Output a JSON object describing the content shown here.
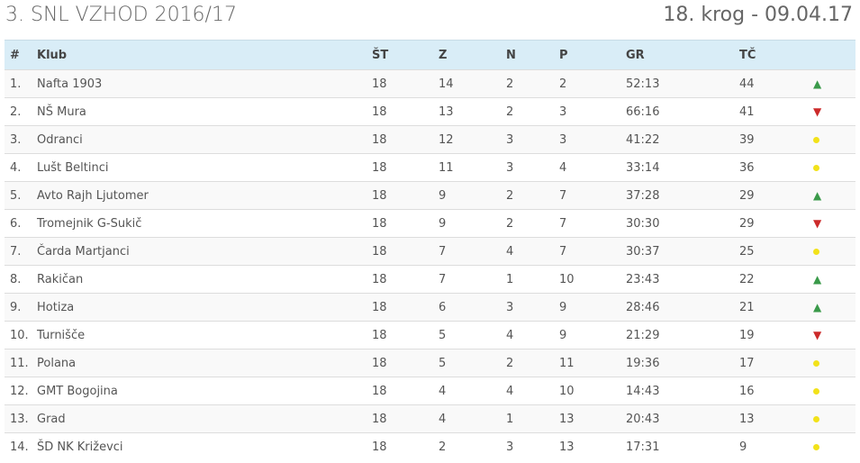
{
  "header": {
    "title": "3. SNL VZHOD 2016/17",
    "round": "18. krog - 09.04.17"
  },
  "columns": [
    "#",
    "Klub",
    "ŠT",
    "Z",
    "N",
    "P",
    "GR",
    "TČ"
  ],
  "rows": [
    {
      "pos": "1.",
      "club": "Nafta 1903",
      "st": "18",
      "z": "14",
      "n": "2",
      "p": "2",
      "gr": "52:13",
      "tc": "44",
      "trend": "up"
    },
    {
      "pos": "2.",
      "club": "NŠ Mura",
      "st": "18",
      "z": "13",
      "n": "2",
      "p": "3",
      "gr": "66:16",
      "tc": "41",
      "trend": "down"
    },
    {
      "pos": "3.",
      "club": "Odranci",
      "st": "18",
      "z": "12",
      "n": "3",
      "p": "3",
      "gr": "41:22",
      "tc": "39",
      "trend": "same"
    },
    {
      "pos": "4.",
      "club": "Lušt Beltinci",
      "st": "18",
      "z": "11",
      "n": "3",
      "p": "4",
      "gr": "33:14",
      "tc": "36",
      "trend": "same"
    },
    {
      "pos": "5.",
      "club": "Avto Rajh Ljutomer",
      "st": "18",
      "z": "9",
      "n": "2",
      "p": "7",
      "gr": "37:28",
      "tc": "29",
      "trend": "up"
    },
    {
      "pos": "6.",
      "club": "Tromejnik G-Sukič",
      "st": "18",
      "z": "9",
      "n": "2",
      "p": "7",
      "gr": "30:30",
      "tc": "29",
      "trend": "down"
    },
    {
      "pos": "7.",
      "club": "Čarda Martjanci",
      "st": "18",
      "z": "7",
      "n": "4",
      "p": "7",
      "gr": "30:37",
      "tc": "25",
      "trend": "same"
    },
    {
      "pos": "8.",
      "club": "Rakičan",
      "st": "18",
      "z": "7",
      "n": "1",
      "p": "10",
      "gr": "23:43",
      "tc": "22",
      "trend": "up"
    },
    {
      "pos": "9.",
      "club": "Hotiza",
      "st": "18",
      "z": "6",
      "n": "3",
      "p": "9",
      "gr": "28:46",
      "tc": "21",
      "trend": "up"
    },
    {
      "pos": "10.",
      "club": "Turnišče",
      "st": "18",
      "z": "5",
      "n": "4",
      "p": "9",
      "gr": "21:29",
      "tc": "19",
      "trend": "down"
    },
    {
      "pos": "11.",
      "club": "Polana",
      "st": "18",
      "z": "5",
      "n": "2",
      "p": "11",
      "gr": "19:36",
      "tc": "17",
      "trend": "same"
    },
    {
      "pos": "12.",
      "club": "GMT Bogojina",
      "st": "18",
      "z": "4",
      "n": "4",
      "p": "10",
      "gr": "14:43",
      "tc": "16",
      "trend": "same"
    },
    {
      "pos": "13.",
      "club": "Grad",
      "st": "18",
      "z": "4",
      "n": "1",
      "p": "13",
      "gr": "20:43",
      "tc": "13",
      "trend": "same"
    },
    {
      "pos": "14.",
      "club": "ŠD NK Križevci",
      "st": "18",
      "z": "2",
      "n": "3",
      "p": "13",
      "gr": "17:31",
      "tc": "9",
      "trend": "same"
    }
  ],
  "colors": {
    "header_bg": "#d9edf7",
    "up": "#3a9a4a",
    "down": "#cc2a2a",
    "same": "#f2e21a"
  }
}
